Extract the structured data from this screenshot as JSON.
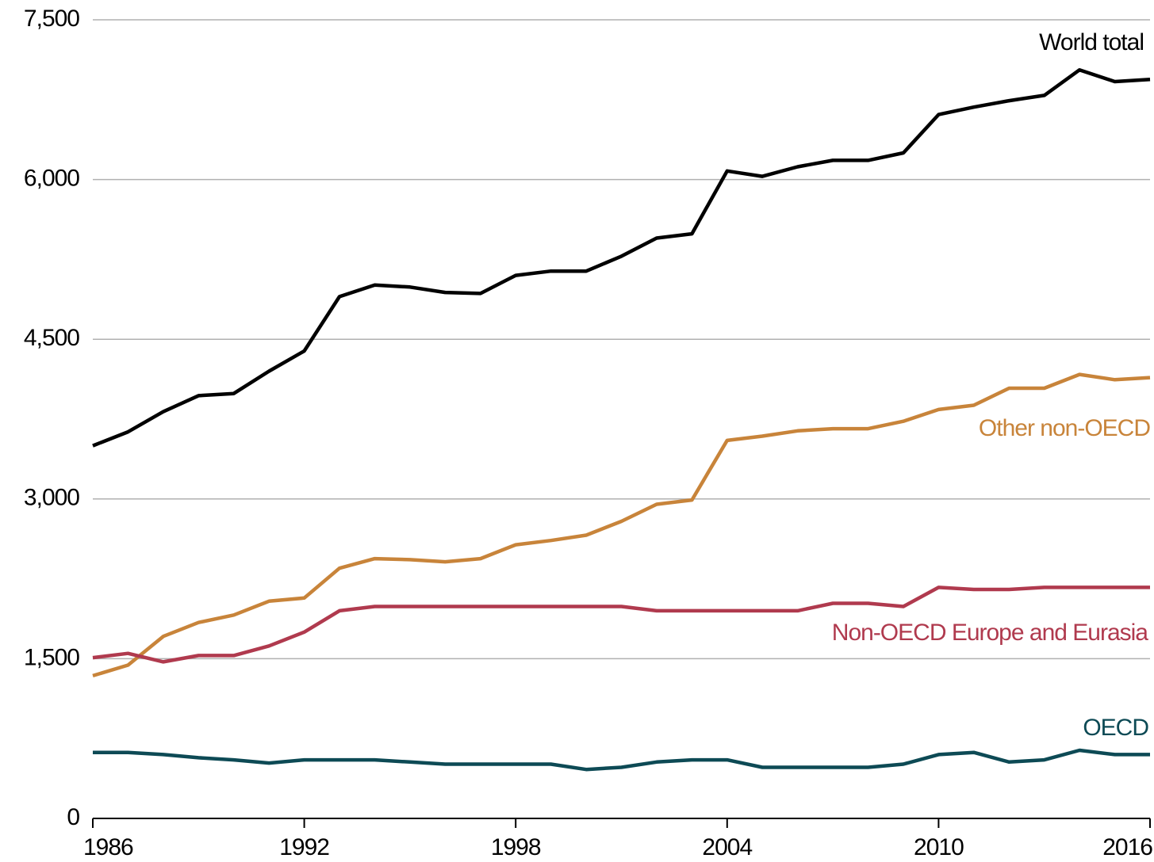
{
  "chart_data": {
    "type": "line",
    "x": [
      1986,
      1987,
      1988,
      1989,
      1990,
      1991,
      1992,
      1993,
      1994,
      1995,
      1996,
      1997,
      1998,
      1999,
      2000,
      2001,
      2002,
      2003,
      2004,
      2005,
      2006,
      2007,
      2008,
      2009,
      2010,
      2011,
      2012,
      2013,
      2014,
      2015,
      2016
    ],
    "series": [
      {
        "name": "World total",
        "color": "#000000",
        "values": [
          3500,
          3630,
          3820,
          3970,
          3990,
          4200,
          4390,
          4900,
          5010,
          4990,
          4940,
          4930,
          5100,
          5140,
          5140,
          5280,
          5450,
          5490,
          6080,
          6030,
          6120,
          6180,
          6180,
          6250,
          6610,
          6680,
          6740,
          6790,
          7030,
          6920,
          6940
        ]
      },
      {
        "name": "Other non-OECD",
        "color": "#c8843a",
        "values": [
          1340,
          1440,
          1710,
          1840,
          1910,
          2040,
          2070,
          2350,
          2440,
          2430,
          2410,
          2440,
          2570,
          2610,
          2660,
          2790,
          2950,
          2990,
          3550,
          3590,
          3640,
          3660,
          3660,
          3730,
          3840,
          3880,
          4040,
          4040,
          4170,
          4120,
          4140
        ]
      },
      {
        "name": "Non-OECD Europe and Eurasia",
        "color": "#b03a4e",
        "values": [
          1510,
          1550,
          1470,
          1530,
          1530,
          1620,
          1750,
          1950,
          1990,
          1990,
          1990,
          1990,
          1990,
          1990,
          1990,
          1990,
          1950,
          1950,
          1950,
          1950,
          1950,
          2020,
          2020,
          1990,
          2170,
          2150,
          2150,
          2170,
          2170,
          2170,
          2170
        ]
      },
      {
        "name": "OECD",
        "color": "#0d4a55",
        "values": [
          620,
          620,
          600,
          570,
          550,
          520,
          550,
          550,
          550,
          530,
          510,
          510,
          510,
          510,
          460,
          480,
          530,
          550,
          550,
          480,
          480,
          480,
          480,
          510,
          600,
          620,
          530,
          550,
          640,
          600,
          600
        ]
      }
    ],
    "xlim": [
      1986,
      2016
    ],
    "xticks": [
      1986,
      1992,
      1998,
      2004,
      2010,
      2016
    ],
    "ylim": [
      0,
      7500
    ],
    "yticks": [
      0,
      {
        "value": 1500,
        "label": "1,500"
      },
      {
        "value": 3000,
        "label": "3,000"
      },
      {
        "value": 4500,
        "label": "4,500"
      },
      {
        "value": 6000,
        "label": "6,000"
      },
      {
        "value": 7500,
        "label": "7,500"
      }
    ],
    "grid": true
  }
}
